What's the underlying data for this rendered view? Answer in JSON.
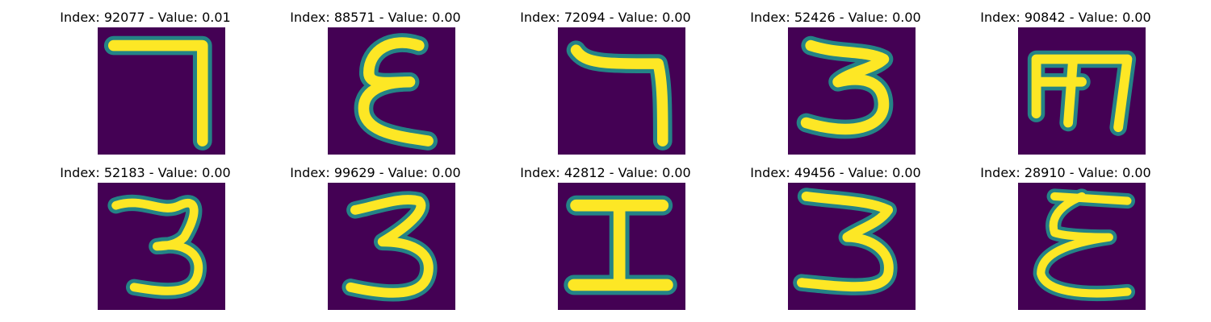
{
  "colors": {
    "background": "#440154",
    "stroke": "#fde725",
    "edge": "#21918c"
  },
  "panels": [
    {
      "title": "Index: 92077 - Value: 0.01",
      "glyph": "seven-like"
    },
    {
      "title": "Index: 88571 - Value: 0.00",
      "glyph": "epsilon-like"
    },
    {
      "title": "Index: 72094 - Value: 0.00",
      "glyph": "seven-like"
    },
    {
      "title": "Index: 52426 - Value: 0.00",
      "glyph": "three-like"
    },
    {
      "title": "Index: 90842 - Value: 0.00",
      "glyph": "sha-like"
    },
    {
      "title": "Index: 52183 - Value: 0.00",
      "glyph": "three"
    },
    {
      "title": "Index: 99629 - Value: 0.00",
      "glyph": "three"
    },
    {
      "title": "Index: 42812 - Value: 0.00",
      "glyph": "i-beam"
    },
    {
      "title": "Index: 49456 - Value: 0.00",
      "glyph": "three"
    },
    {
      "title": "Index: 28910 - Value: 0.00",
      "glyph": "epsilon-like"
    }
  ]
}
